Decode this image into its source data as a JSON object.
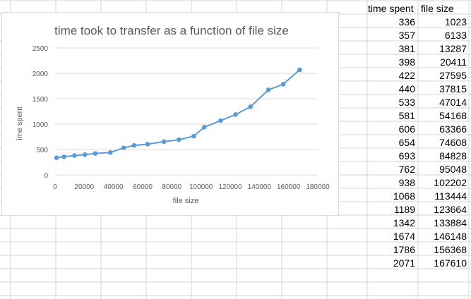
{
  "sheet": {
    "header": {
      "col1": "time spent",
      "col2": "file size"
    },
    "rows": [
      {
        "time": "336",
        "size": "1023"
      },
      {
        "time": "357",
        "size": "6133"
      },
      {
        "time": "381",
        "size": "13287"
      },
      {
        "time": "398",
        "size": "20411"
      },
      {
        "time": "422",
        "size": "27595"
      },
      {
        "time": "440",
        "size": "37815"
      },
      {
        "time": "533",
        "size": "47014"
      },
      {
        "time": "581",
        "size": "54168"
      },
      {
        "time": "606",
        "size": "63366"
      },
      {
        "time": "654",
        "size": "74608"
      },
      {
        "time": "693",
        "size": "84828"
      },
      {
        "time": "762",
        "size": "95048"
      },
      {
        "time": "938",
        "size": "102202"
      },
      {
        "time": "1068",
        "size": "113444"
      },
      {
        "time": "1189",
        "size": "123664"
      },
      {
        "time": "1342",
        "size": "133884"
      },
      {
        "time": "1674",
        "size": "146148"
      },
      {
        "time": "1786",
        "size": "156368"
      },
      {
        "time": "2071",
        "size": "167610"
      }
    ]
  },
  "chart_data": {
    "type": "scatter",
    "title": "time took to transfer as a function of file size",
    "xlabel": "file size",
    "ylabel": "ime spent",
    "xlim": [
      0,
      180000
    ],
    "ylim": [
      0,
      2500
    ],
    "xticks": [
      "0",
      "20000",
      "40000",
      "60000",
      "80000",
      "100000",
      "120000",
      "140000",
      "160000",
      "180000"
    ],
    "yticks": [
      "0",
      "500",
      "1000",
      "1500",
      "2000",
      "2500"
    ],
    "grid": true,
    "line": true,
    "color": "#5b9bd5",
    "x": [
      1023,
      6133,
      13287,
      20411,
      27595,
      37815,
      47014,
      54168,
      63366,
      74608,
      84828,
      95048,
      102202,
      113444,
      123664,
      133884,
      146148,
      156368,
      167610
    ],
    "y": [
      336,
      357,
      381,
      398,
      422,
      440,
      533,
      581,
      606,
      654,
      693,
      762,
      938,
      1068,
      1189,
      1342,
      1674,
      1786,
      2071
    ]
  }
}
